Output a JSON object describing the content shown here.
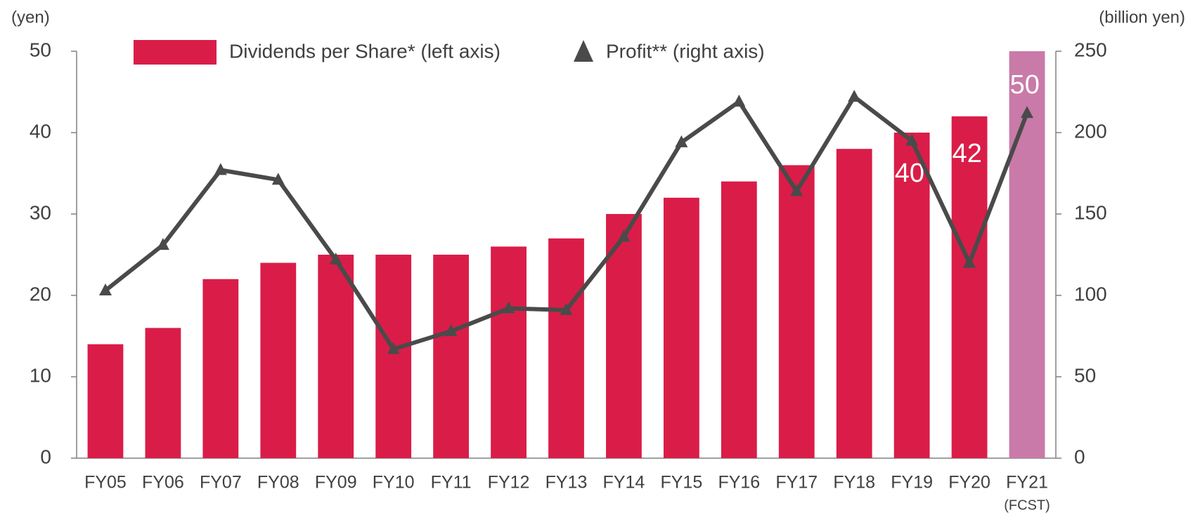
{
  "chart_data": {
    "type": "bar_line",
    "y_axis_label": "(yen)",
    "y2_axis_label": "(billion yen)",
    "categories": [
      "FY05",
      "FY06",
      "FY07",
      "FY08",
      "FY09",
      "FY10",
      "FY11",
      "FY12",
      "FY13",
      "FY14",
      "FY15",
      "FY16",
      "FY17",
      "FY18",
      "FY19",
      "FY20",
      "FY21"
    ],
    "annotations": [
      {
        "text": "(FCST)",
        "category": 16
      }
    ],
    "ylim": [
      0,
      50
    ],
    "yticks": [
      0,
      10,
      20,
      30,
      40,
      50
    ],
    "y2lim": [
      0,
      250
    ],
    "y2ticks": [
      0,
      50,
      100,
      150,
      200,
      250
    ],
    "series": [
      {
        "name": "Dividends per Share* (left axis)",
        "type": "bar",
        "color": "#d91d48",
        "colors": [
          "#d91d48",
          "#d91d48",
          "#d91d48",
          "#d91d48",
          "#d91d48",
          "#d91d48",
          "#d91d48",
          "#d91d48",
          "#d91d48",
          "#d91d48",
          "#d91d48",
          "#d91d48",
          "#d91d48",
          "#d91d48",
          "#d91d48",
          "#d91d48",
          "#c97aa8"
        ],
        "values": [
          14,
          16,
          22,
          24,
          25,
          25,
          25,
          26,
          27,
          30,
          32,
          34,
          36,
          38,
          40,
          42,
          50
        ],
        "value_labels": [
          null,
          null,
          null,
          null,
          null,
          null,
          null,
          null,
          null,
          null,
          null,
          null,
          null,
          null,
          "40",
          "42",
          "50"
        ]
      },
      {
        "name": "Profit** (right axis)",
        "type": "line",
        "axis": "y2",
        "color": "#4a4a4a",
        "values": [
          103,
          131,
          177,
          171,
          122,
          67,
          78,
          92,
          91,
          136,
          194,
          219,
          164,
          222,
          195,
          120,
          212
        ]
      }
    ]
  }
}
